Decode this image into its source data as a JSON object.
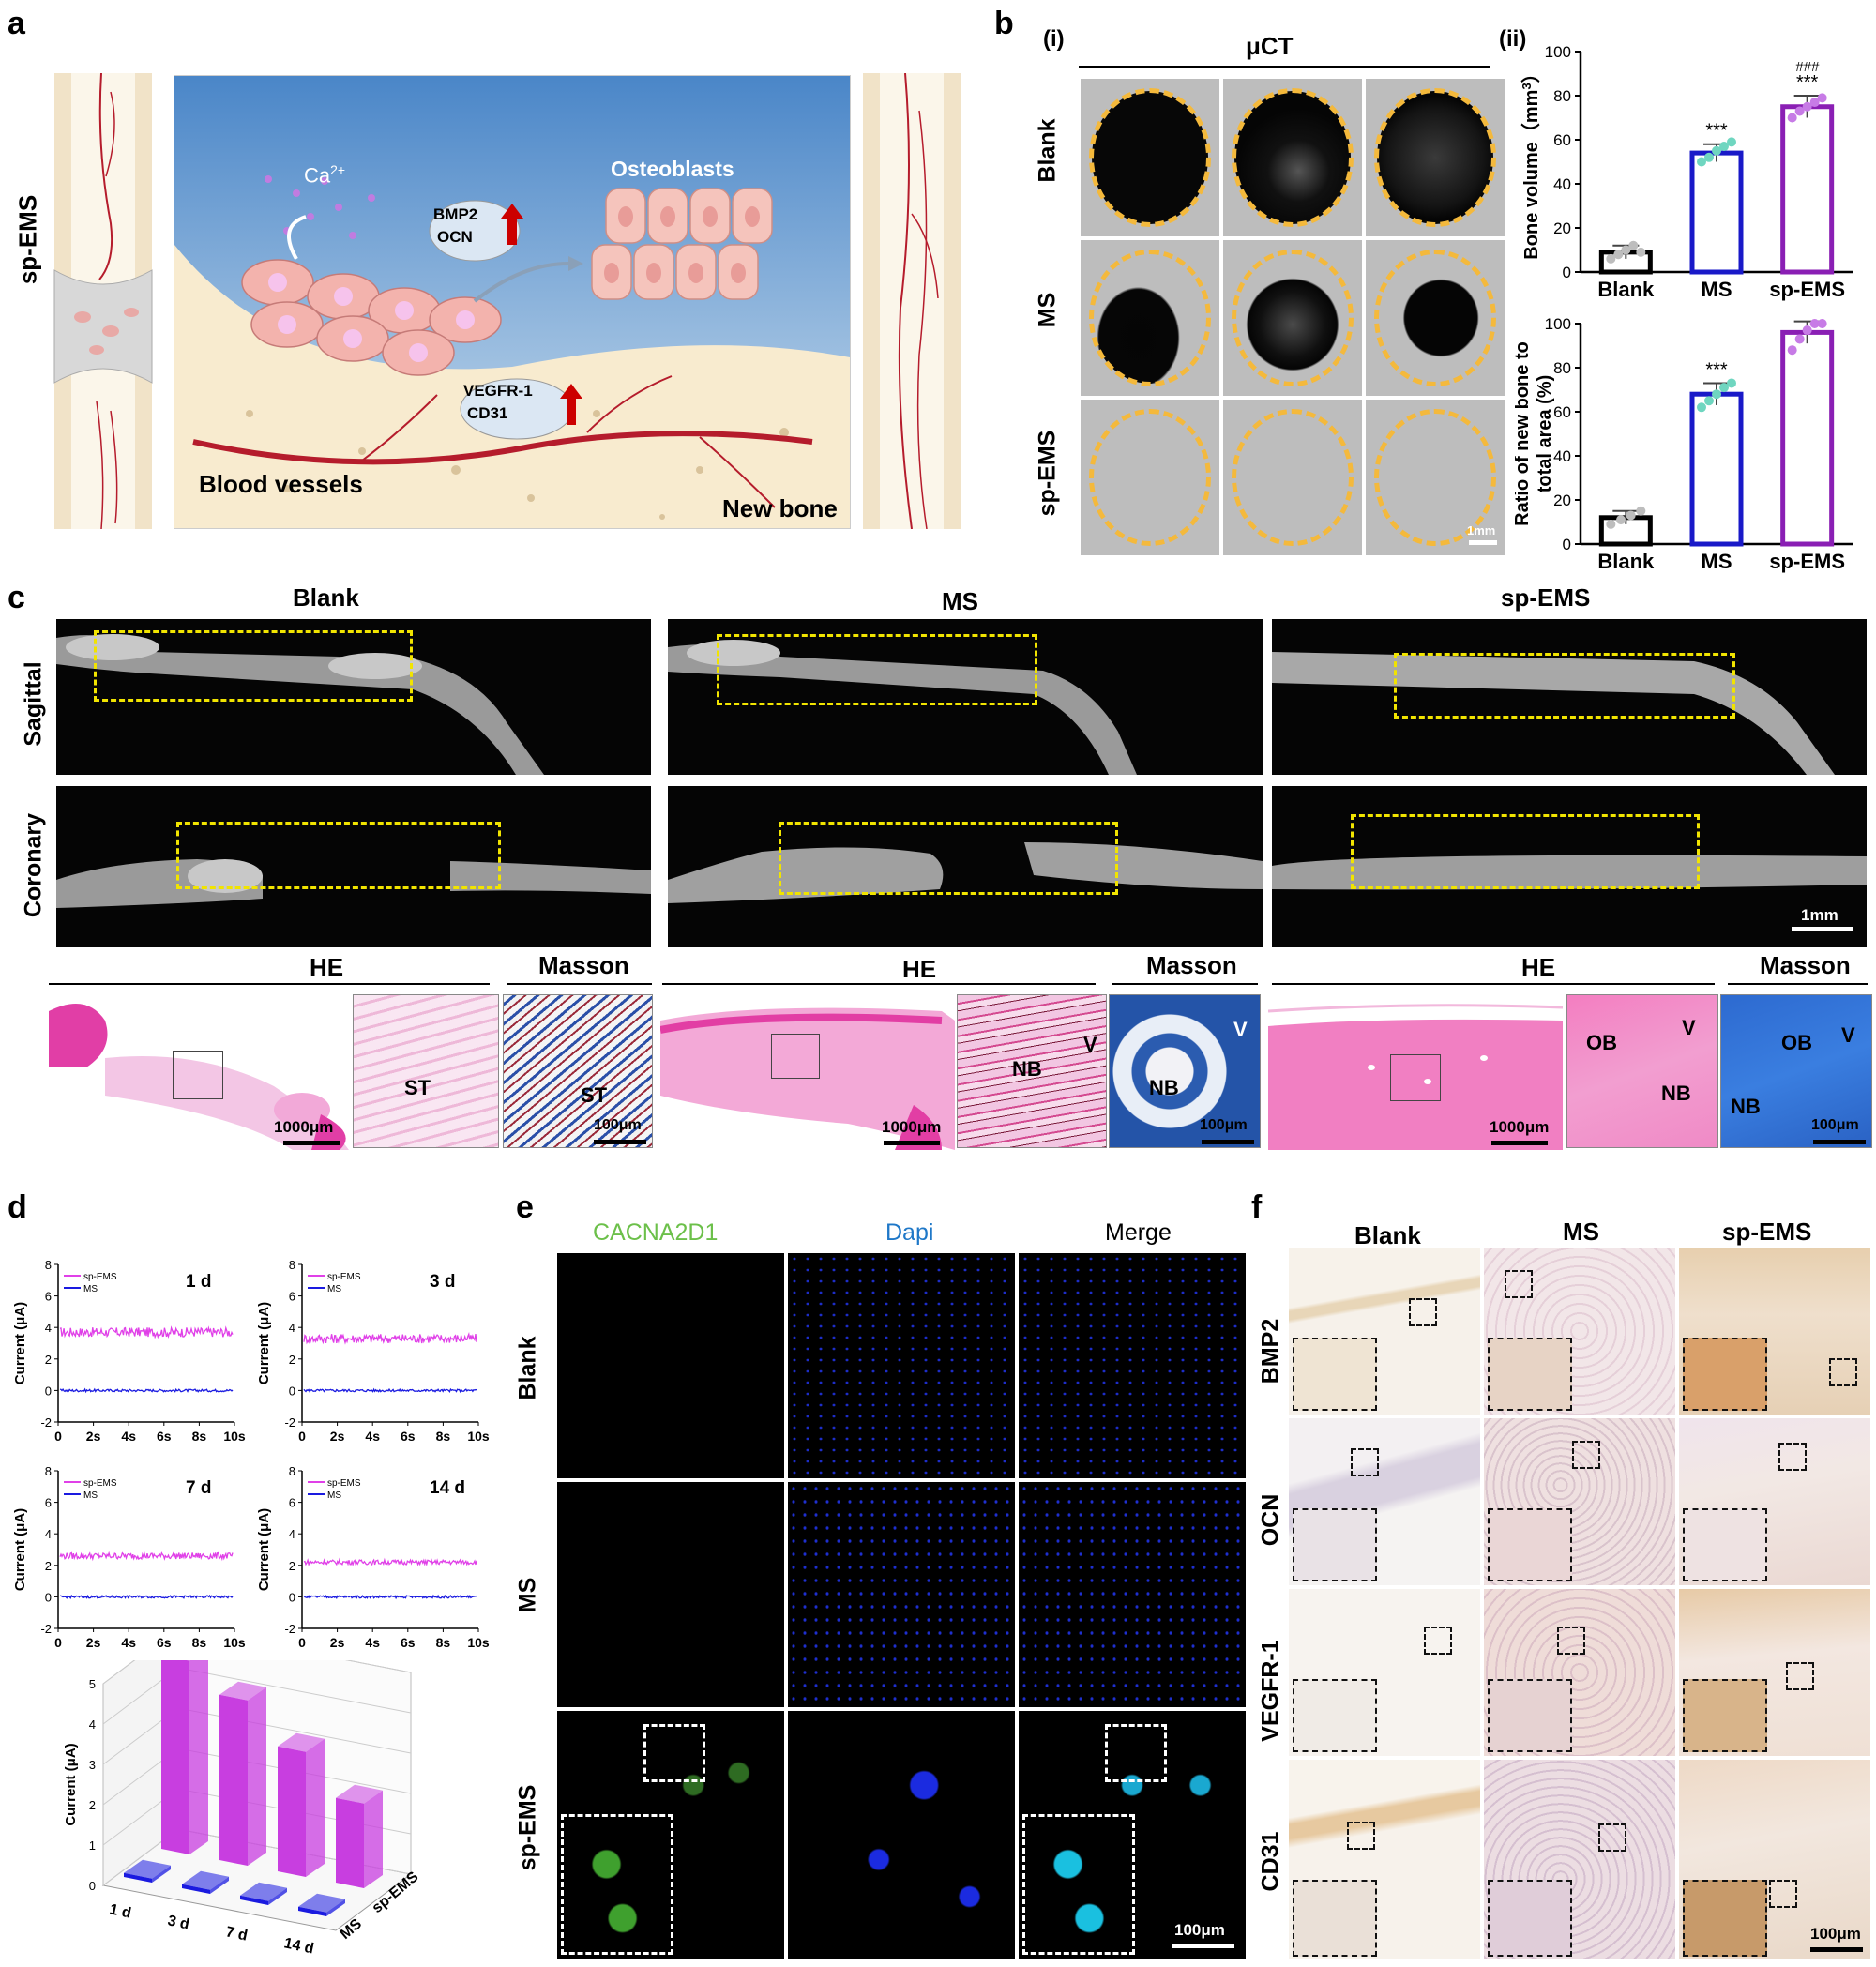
{
  "panels": {
    "a": "a",
    "b": "b",
    "c": "c",
    "d": "d",
    "e": "e",
    "f": "f"
  },
  "a": {
    "side_label": "sp-EMS",
    "ca": "Ca",
    "ca_sup": "2+",
    "osteoblasts": "Osteoblasts",
    "bmp2": "BMP2",
    "ocn": "OCN",
    "vegfr1": "VEGFR-1",
    "cd31": "CD31",
    "blood_vessels": "Blood vessels",
    "new_bone": "New bone"
  },
  "b": {
    "sub_i": "(i)",
    "sub_ii": "(ii)",
    "uct": "μCT",
    "rows": [
      "Blank",
      "MS",
      "sp-EMS"
    ],
    "scale": "1mm"
  },
  "c": {
    "cols": [
      "Blank",
      "MS",
      "sp-EMS"
    ],
    "rows": [
      "Sagittal",
      "Coronary"
    ],
    "scale_ct": "1mm",
    "he": "HE",
    "masson": "Masson",
    "scale_he": "1000μm",
    "scale_zoom": "100μm",
    "tags": {
      "st": "ST",
      "nb": "NB",
      "v": "V",
      "ob": "OB"
    }
  },
  "e": {
    "cols": [
      "CACNA2D1",
      "Dapi",
      "Merge"
    ],
    "rows": [
      "Blank",
      "MS",
      "sp-EMS"
    ],
    "scale": "100μm",
    "colors": {
      "green": "#6cc04a",
      "blue": "#1f78c8"
    }
  },
  "f": {
    "cols": [
      "Blank",
      "MS",
      "sp-EMS"
    ],
    "rows": [
      "BMP2",
      "OCN",
      "VEGFR-1",
      "CD31"
    ],
    "scale": "100μm"
  },
  "chart_data": [
    {
      "type": "bar",
      "categories": [
        "Blank",
        "MS",
        "sp-EMS"
      ],
      "values": [
        9,
        54,
        75
      ],
      "points": [
        [
          6,
          8,
          10,
          12,
          9
        ],
        [
          50,
          52,
          55,
          57,
          59
        ],
        [
          70,
          73,
          75,
          77,
          79
        ]
      ],
      "errors": [
        3,
        4,
        5
      ],
      "sig": [
        "",
        "***",
        "***"
      ],
      "sig2": [
        "",
        "",
        "###"
      ],
      "ylabel": "Bone volume（mm",
      "ylabel_sup": "3",
      "ylabel_end": "）",
      "ylim": [
        0,
        100
      ],
      "yticks": [
        0,
        20,
        40,
        60,
        80,
        100
      ],
      "colors": [
        "#000000",
        "#1919c8",
        "#8a1fb4"
      ],
      "point_colors": [
        "#bdbdbd",
        "#6fd6c0",
        "#c77be6"
      ]
    },
    {
      "type": "bar",
      "categories": [
        "Blank",
        "MS",
        "sp-EMS"
      ],
      "values": [
        12,
        68,
        96
      ],
      "points": [
        [
          9,
          11,
          13,
          15
        ],
        [
          62,
          65,
          68,
          71,
          73
        ],
        [
          88,
          93,
          97,
          100,
          100
        ]
      ],
      "errors": [
        3,
        5,
        5
      ],
      "sig": [
        "",
        "***",
        "***"
      ],
      "sig2": [
        "",
        "",
        "###"
      ],
      "ylabel": "Ratio of new bone to",
      "ylabel2": "total area  (%)",
      "ylim": [
        0,
        100
      ],
      "yticks": [
        0,
        20,
        40,
        60,
        80,
        100
      ],
      "colors": [
        "#000000",
        "#1919c8",
        "#8a1fb4"
      ],
      "point_colors": [
        "#bdbdbd",
        "#6fd6c0",
        "#c77be6"
      ]
    },
    {
      "type": "line",
      "title": "1 d",
      "legend": [
        "sp-EMS",
        "MS"
      ],
      "ylabel": "Current  (μA)",
      "ylim": [
        -2,
        8
      ],
      "yticks": [
        -2,
        0,
        2,
        4,
        6,
        8
      ],
      "xticks": [
        "0",
        "2s",
        "4s",
        "6s",
        "8s",
        "10s"
      ],
      "levels": {
        "sp-EMS": 3.7,
        "MS": 0
      },
      "noise": 0.3,
      "colors": {
        "sp-EMS": "#e040e8",
        "MS": "#1a1ae0"
      }
    },
    {
      "type": "line",
      "title": "3 d",
      "legend": [
        "sp-EMS",
        "MS"
      ],
      "ylabel": "Current  (μA)",
      "ylim": [
        -2,
        8
      ],
      "yticks": [
        -2,
        0,
        2,
        4,
        6,
        8
      ],
      "xticks": [
        "0",
        "2s",
        "4s",
        "6s",
        "8s",
        "10s"
      ],
      "levels": {
        "sp-EMS": 3.3,
        "MS": 0
      },
      "noise": 0.3,
      "colors": {
        "sp-EMS": "#e040e8",
        "MS": "#1a1ae0"
      }
    },
    {
      "type": "line",
      "title": "7 d",
      "legend": [
        "sp-EMS",
        "MS"
      ],
      "ylabel": "Current  (μA)",
      "ylim": [
        -2,
        8
      ],
      "yticks": [
        -2,
        0,
        2,
        4,
        6,
        8
      ],
      "xticks": [
        "0",
        "2s",
        "4s",
        "6s",
        "8s",
        "10s"
      ],
      "levels": {
        "sp-EMS": 2.6,
        "MS": 0
      },
      "noise": 0.2,
      "colors": {
        "sp-EMS": "#e040e8",
        "MS": "#1a1ae0"
      }
    },
    {
      "type": "line",
      "title": "14 d",
      "legend": [
        "sp-EMS",
        "MS"
      ],
      "ylabel": "Current  (μA)",
      "ylim": [
        -2,
        8
      ],
      "yticks": [
        -2,
        0,
        2,
        4,
        6,
        8
      ],
      "xticks": [
        "0",
        "2s",
        "4s",
        "6s",
        "8s",
        "10s"
      ],
      "levels": {
        "sp-EMS": 2.2,
        "MS": 0
      },
      "noise": 0.15,
      "colors": {
        "sp-EMS": "#e040e8",
        "MS": "#1a1ae0"
      }
    },
    {
      "type": "bar",
      "subtype": "3d",
      "categories": [
        "1 d",
        "3 d",
        "7 d",
        "14 d"
      ],
      "series": [
        {
          "name": "MS",
          "values": [
            0.1,
            0.1,
            0.1,
            0.1
          ],
          "color": "#1a1ae0"
        },
        {
          "name": "sp-EMS",
          "values": [
            4.8,
            4.1,
            3.1,
            2.1
          ],
          "color": "#c83ee0"
        }
      ],
      "ylabel": "Current  (μA)",
      "ylim": [
        0,
        5
      ],
      "yticks": [
        0,
        1,
        2,
        3,
        4,
        5
      ]
    }
  ]
}
